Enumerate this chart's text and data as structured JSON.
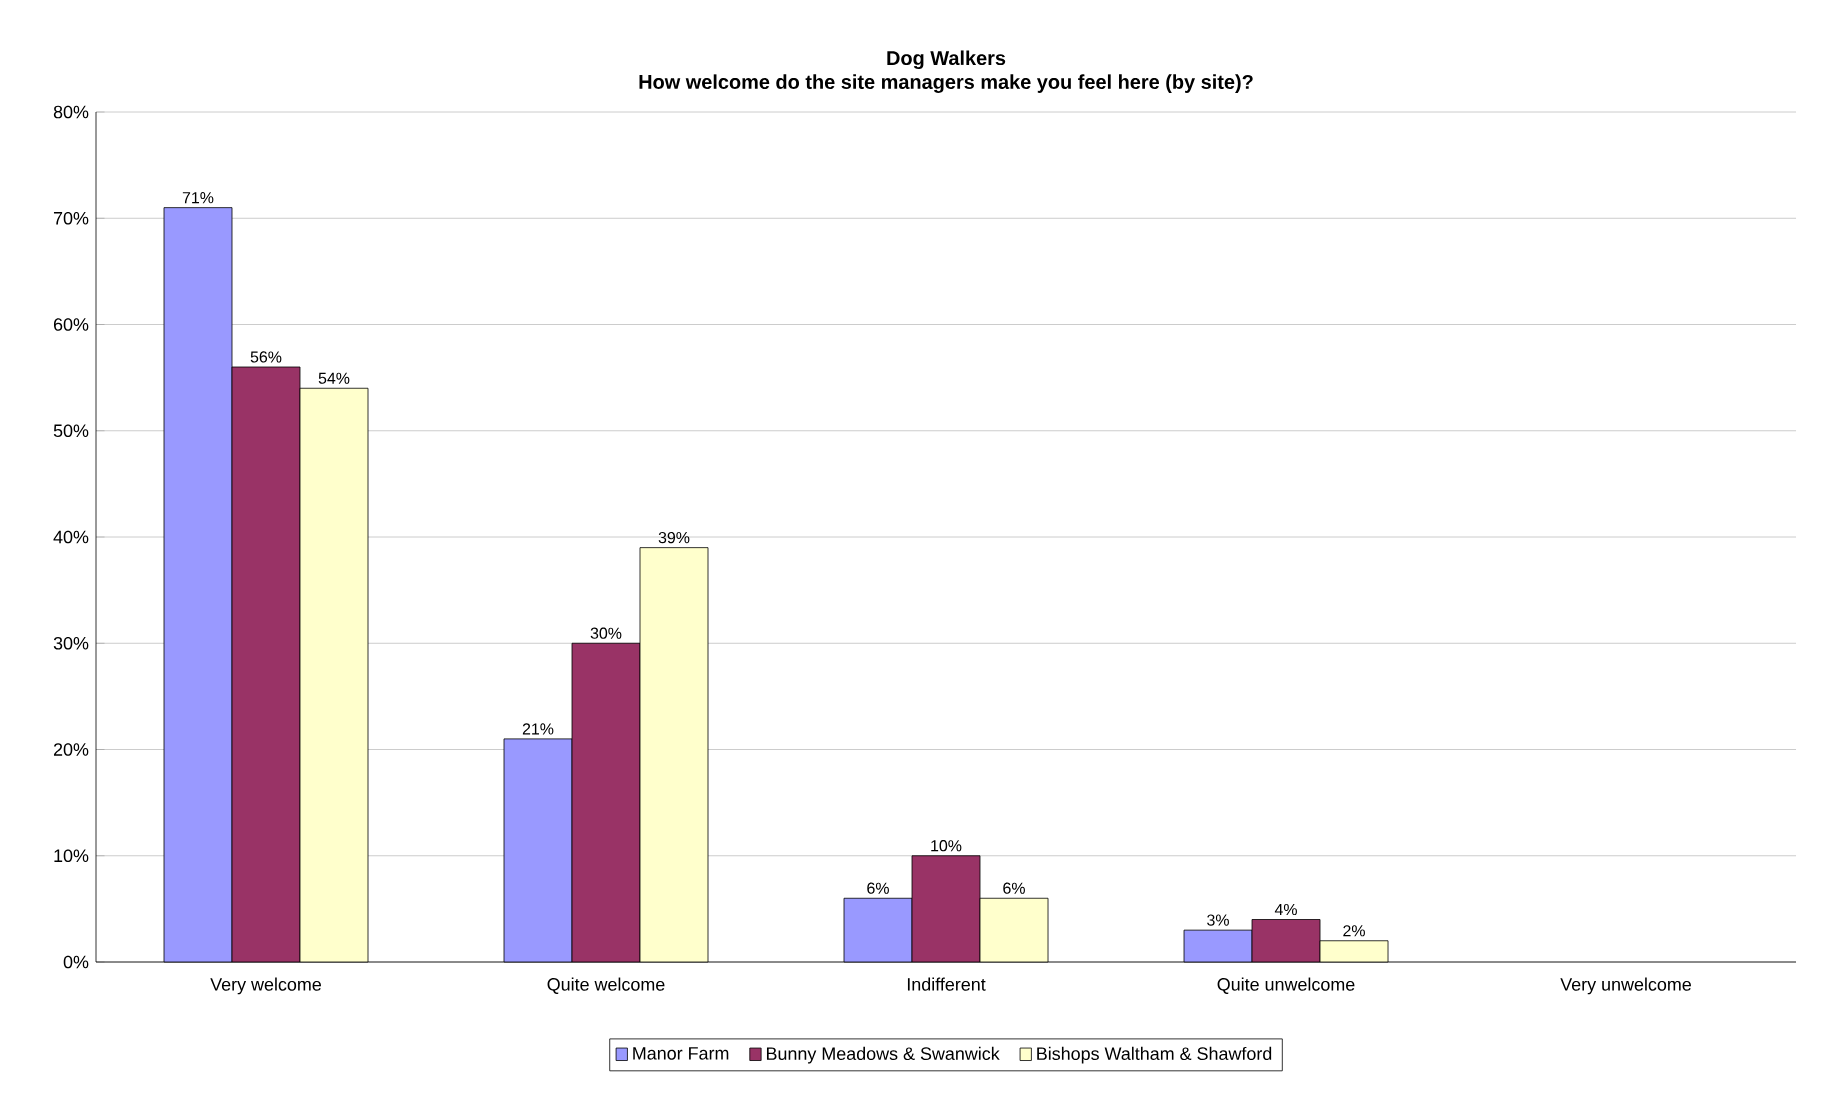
{
  "chart_data": {
    "type": "bar",
    "title": "Dog Walkers",
    "subtitle": "How welcome do the site managers make you feel here (by site)?",
    "categories": [
      "Very welcome",
      "Quite welcome",
      "Indifferent",
      "Quite unwelcome",
      "Very unwelcome"
    ],
    "series": [
      {
        "name": "Manor Farm",
        "color": "#9999ff",
        "values": [
          71,
          21,
          6,
          3,
          null
        ],
        "value_labels": [
          "71%",
          "21%",
          "6%",
          "3%",
          null
        ]
      },
      {
        "name": "Bunny Meadows & Swanwick",
        "color": "#993366",
        "values": [
          56,
          30,
          10,
          4,
          null
        ],
        "value_labels": [
          "56%",
          "30%",
          "10%",
          "4%",
          null
        ]
      },
      {
        "name": "Bishops Waltham & Shawford",
        "color": "#ffffcc",
        "values": [
          54,
          39,
          6,
          2,
          null
        ],
        "value_labels": [
          "54%",
          "39%",
          "6%",
          "2%",
          null
        ]
      }
    ],
    "ylim": [
      0,
      80
    ],
    "yticks": [
      {
        "value": 0,
        "label": "0%"
      },
      {
        "value": 10,
        "label": "10%"
      },
      {
        "value": 20,
        "label": "20%"
      },
      {
        "value": 30,
        "label": "30%"
      },
      {
        "value": 40,
        "label": "40%"
      },
      {
        "value": 50,
        "label": "50%"
      },
      {
        "value": 60,
        "label": "60%"
      },
      {
        "value": 70,
        "label": "70%"
      },
      {
        "value": 80,
        "label": "80%"
      }
    ],
    "grid": "y",
    "legend": "bottom"
  }
}
